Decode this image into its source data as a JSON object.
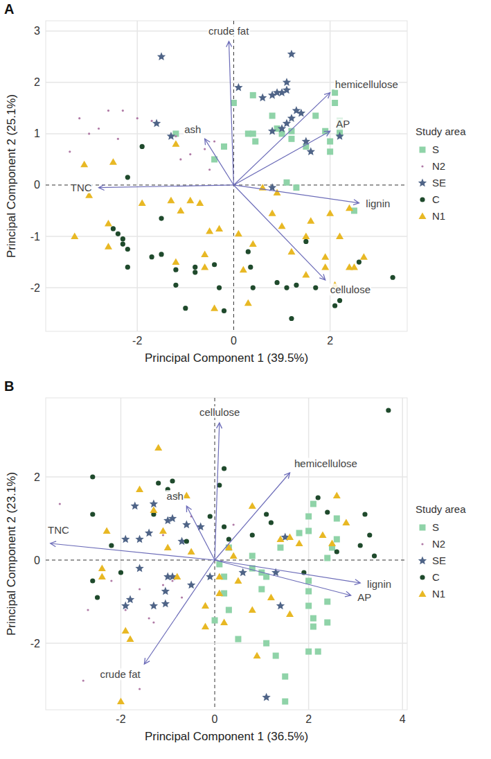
{
  "chart_data": [
    {
      "type": "scatter",
      "title": "A",
      "x_label": "Principal Component 1 (39.5%)",
      "y_label": "Principal Component 2 (25.1%)",
      "xlim": [
        -3.9,
        3.6
      ],
      "ylim": [
        -2.85,
        3.2
      ],
      "xticks": [
        -2,
        0,
        2
      ],
      "yticks": [
        -2,
        -1,
        0,
        1,
        2,
        3
      ],
      "grid": true,
      "legend": "right",
      "legend_title": "Study area",
      "series": [
        {
          "name": "S",
          "color": "#8fd3a8",
          "marker": "square",
          "x": [
            0.0,
            0.4,
            -0.2,
            -0.4,
            -1.2,
            0.3,
            0.4,
            0.45,
            0.9,
            1.0,
            1.2,
            1.2,
            1.5,
            1.7,
            1.9,
            2.0,
            2.0,
            2.2,
            2.1,
            2.1,
            2.2,
            2.2,
            1.1,
            1.3,
            2.5,
            0.8
          ],
          "y": [
            1.6,
            1.75,
            0.75,
            0.5,
            1.0,
            1.0,
            1.0,
            0.85,
            1.1,
            1.0,
            1.05,
            0.9,
            0.75,
            1.35,
            1.05,
            0.85,
            0.65,
            1.0,
            1.8,
            1.6,
            1.25,
            1.1,
            0.05,
            -0.05,
            -0.5,
            1.35
          ]
        },
        {
          "name": "N2",
          "color": "#b07aa6",
          "marker": "dot",
          "x": [
            -3.2,
            -3.0,
            -2.8,
            -2.6,
            -2.3,
            -2.0,
            -1.7,
            -3.4,
            -1.1,
            -0.9,
            -0.6,
            -0.4,
            -1.2,
            -2.4,
            -0.5
          ],
          "y": [
            1.3,
            1.0,
            1.1,
            1.45,
            1.45,
            1.3,
            1.25,
            0.65,
            0.5,
            0.6,
            0.7,
            0.85,
            0.95,
            0.9,
            0.3
          ]
        },
        {
          "name": "SE",
          "color": "#4f6487",
          "marker": "star",
          "x": [
            -1.5,
            -1.6,
            -1.3,
            0.1,
            0.6,
            0.8,
            0.9,
            1.0,
            1.1,
            1.1,
            1.2,
            1.1,
            1.2,
            1.3,
            1.4,
            1.5,
            1.6,
            0.8,
            0.8,
            2.2,
            1.0
          ],
          "y": [
            2.5,
            1.2,
            0.95,
            1.9,
            1.7,
            1.75,
            1.8,
            1.8,
            1.85,
            2.0,
            2.55,
            1.2,
            1.3,
            1.45,
            1.4,
            0.85,
            0.65,
            1.05,
            -0.05,
            0.95,
            1.1
          ]
        },
        {
          "name": "C",
          "color": "#1f4a2c",
          "marker": "circle",
          "x": [
            -2.2,
            -1.9,
            -2.5,
            -2.4,
            -2.3,
            -2.3,
            -2.2,
            -2.2,
            -1.5,
            -1.7,
            -1.5,
            -1.2,
            -1.2,
            -1.0,
            -0.8,
            -0.8,
            -0.4,
            -0.3,
            -0.2,
            0.3,
            0.35,
            0.4,
            0.9,
            1.1,
            1.2,
            1.5,
            1.7,
            2.1,
            2.2,
            2.6,
            3.3,
            1.3
          ],
          "y": [
            0.15,
            0.75,
            -0.85,
            -0.95,
            -1.05,
            -1.15,
            -1.25,
            -1.6,
            -0.65,
            -1.4,
            -1.35,
            -1.65,
            -1.95,
            -2.4,
            -1.6,
            -1.7,
            -1.55,
            -2.0,
            -2.45,
            -1.3,
            -1.6,
            -2.0,
            -1.9,
            -2.0,
            -2.6,
            -1.1,
            -2.0,
            -2.35,
            -2.25,
            -1.5,
            -1.8,
            -1.95
          ]
        },
        {
          "name": "N1",
          "color": "#e8b824",
          "marker": "triangle",
          "x": [
            -3.1,
            -2.5,
            -3.3,
            -3.0,
            -2.6,
            -2.6,
            -1.9,
            -1.3,
            -1.2,
            -1.1,
            -0.9,
            -0.7,
            -0.5,
            -0.3,
            -1.2,
            -0.6,
            -0.6,
            -0.4,
            0.1,
            0.2,
            0.4,
            0.3,
            0.6,
            0.8,
            1.0,
            1.2,
            1.5,
            1.6,
            1.5,
            1.9,
            1.9,
            2.0,
            2.1,
            2.4,
            2.5,
            2.7,
            2.2,
            0.9,
            2.4
          ],
          "y": [
            0.4,
            0.45,
            -1.0,
            -0.2,
            -0.75,
            -1.2,
            -0.35,
            -0.3,
            0.8,
            -0.5,
            -0.3,
            -0.35,
            -0.9,
            -0.85,
            -1.5,
            -1.35,
            -1.6,
            -2.4,
            -0.95,
            -1.65,
            -1.15,
            -2.3,
            -0.05,
            -0.55,
            -0.8,
            -1.3,
            -1.0,
            -0.7,
            -1.75,
            -1.4,
            -1.6,
            -0.55,
            -1.95,
            -1.6,
            -1.6,
            -1.4,
            -1.0,
            -0.15,
            -0.45
          ]
        }
      ],
      "loadings": [
        {
          "label": "crude fat",
          "x": -0.1,
          "y": 2.8
        },
        {
          "label": "hemicellulose",
          "x": 2.0,
          "y": 1.8
        },
        {
          "label": "AP",
          "x": 2.0,
          "y": 1.05
        },
        {
          "label": "ash",
          "x": -0.6,
          "y": 0.9
        },
        {
          "label": "TNC",
          "x": -2.8,
          "y": -0.05
        },
        {
          "label": "lignin",
          "x": 2.6,
          "y": -0.35
        },
        {
          "label": "cellulose",
          "x": 1.9,
          "y": -1.85
        }
      ]
    },
    {
      "type": "scatter",
      "title": "B",
      "x_label": "Principal Component 1 (36.5%)",
      "y_label": "Principal Component 2 (23.1%)",
      "xlim": [
        -3.6,
        4.1
      ],
      "ylim": [
        -3.6,
        3.9
      ],
      "xticks": [
        -2,
        0,
        2,
        4
      ],
      "yticks": [
        -2,
        0,
        2
      ],
      "grid": true,
      "legend": "right",
      "legend_title": "Study area",
      "series": [
        {
          "name": "S",
          "color": "#8fd3a8",
          "marker": "square",
          "x": [
            0.1,
            0.2,
            0.2,
            0.3,
            0.0,
            0.5,
            0.8,
            0.8,
            1.0,
            1.1,
            1.0,
            1.1,
            1.3,
            1.5,
            1.5,
            1.8,
            2.0,
            2.0,
            2.0,
            2.0,
            2.0,
            2.1,
            2.1,
            2.0,
            2.2,
            2.1,
            2.4,
            2.5,
            2.6,
            2.6,
            2.4,
            2.4,
            0.3,
            1.4
          ],
          "y": [
            -0.1,
            -0.4,
            -0.8,
            -1.2,
            -1.45,
            -1.9,
            0.1,
            -0.2,
            -0.3,
            -0.4,
            -0.7,
            -2.0,
            -2.3,
            -2.8,
            -3.4,
            0.65,
            1.05,
            0.7,
            -0.5,
            -0.75,
            -1.1,
            -1.4,
            -1.6,
            -2.2,
            -2.2,
            1.35,
            0.05,
            0.3,
            1.0,
            0.5,
            -1.0,
            -1.5,
            0.3,
            0.3
          ]
        },
        {
          "name": "N2",
          "color": "#b07aa6",
          "marker": "dot",
          "x": [
            -3.3,
            -2.8,
            -2.7,
            -2.2,
            -1.9,
            -1.6,
            -1.6,
            -1.4,
            -1.3,
            -1.1,
            -0.9,
            -0.7,
            -0.5,
            0.4,
            -1.1
          ],
          "y": [
            1.35,
            -2.9,
            -1.2,
            -0.5,
            -1.2,
            -3.1,
            -0.7,
            -1.4,
            -1.5,
            -0.6,
            -0.5,
            -0.9,
            1.05,
            0.85,
            0.6
          ]
        },
        {
          "name": "SE",
          "color": "#4f6487",
          "marker": "star",
          "x": [
            -1.7,
            -1.9,
            -1.6,
            -1.4,
            -1.6,
            -1.8,
            -1.9,
            -1.3,
            -1.0,
            -0.9,
            -0.7,
            -0.6,
            -0.5,
            -1.0,
            -1.05,
            -1.05,
            -0.9,
            -1.3,
            -0.1,
            0.6,
            1.3,
            1.5,
            1.4,
            1.1,
            -0.3
          ],
          "y": [
            1.3,
            0.5,
            0.5,
            0.65,
            -0.2,
            -0.95,
            -1.1,
            1.35,
            0.95,
            1.0,
            0.45,
            0.85,
            -0.6,
            -0.4,
            -0.75,
            -1.05,
            -0.4,
            -1.1,
            -0.4,
            -0.3,
            -0.3,
            0.55,
            -1.1,
            -3.3,
            0.8
          ]
        },
        {
          "name": "C",
          "color": "#1f4a2c",
          "marker": "circle",
          "x": [
            -2.6,
            -2.6,
            -2.6,
            -2.5,
            -2.2,
            -2.0,
            -1.3,
            -1.2,
            -1.0,
            -0.9,
            -0.8,
            -0.6,
            -0.1,
            0.2,
            0.1,
            0.2,
            0.3,
            0.8,
            1.1,
            1.8,
            1.9,
            2.2,
            2.4,
            2.6,
            3.2,
            3.3,
            3.4,
            3.7,
            3.1,
            1.2
          ],
          "y": [
            2.0,
            1.1,
            -0.5,
            -0.9,
            0.35,
            -0.3,
            1.1,
            1.85,
            1.7,
            1.9,
            1.55,
            0.45,
            1.05,
            2.2,
            1.8,
            0.8,
            0.5,
            0.6,
            1.1,
            2.3,
            -0.3,
            1.5,
            1.15,
            0.2,
            1.1,
            0.6,
            0.1,
            3.6,
            0.35,
            0.9
          ]
        },
        {
          "name": "N1",
          "color": "#e8b824",
          "marker": "triangle",
          "x": [
            -2.3,
            -2.4,
            -2.4,
            -1.9,
            -2.0,
            -1.8,
            -1.6,
            -1.3,
            -1.2,
            -1.1,
            -1.0,
            -0.8,
            -0.6,
            -0.5,
            -0.2,
            -0.2,
            0.1,
            0.1,
            0.2,
            0.3,
            0.4,
            0.5,
            0.8,
            0.9,
            1.2,
            1.4,
            1.6,
            1.6,
            1.8,
            2.3,
            2.6,
            2.8,
            2.5,
            0.8
          ],
          "y": [
            0.7,
            -0.2,
            -0.4,
            -1.7,
            -3.4,
            -1.9,
            1.7,
            1.2,
            2.7,
            0.7,
            0.3,
            -0.4,
            1.55,
            0.2,
            -1.1,
            -1.6,
            -0.4,
            -0.8,
            -1.5,
            0.3,
            0.1,
            -0.5,
            -1.2,
            -2.3,
            -0.9,
            0.5,
            0.55,
            -1.3,
            0.4,
            0.6,
            1.55,
            0.9,
            0.4,
            1.3
          ]
        }
      ],
      "loadings": [
        {
          "label": "cellulose",
          "x": 0.1,
          "y": 3.3
        },
        {
          "label": "hemicellulose",
          "x": 1.6,
          "y": 2.1
        },
        {
          "label": "ash",
          "x": -0.6,
          "y": 1.3
        },
        {
          "label": "TNC",
          "x": -3.5,
          "y": 0.4
        },
        {
          "label": "lignin",
          "x": 3.1,
          "y": -0.55
        },
        {
          "label": "AP",
          "x": 2.9,
          "y": -0.85
        },
        {
          "label": "crude fat",
          "x": -1.5,
          "y": -2.5
        }
      ]
    }
  ]
}
